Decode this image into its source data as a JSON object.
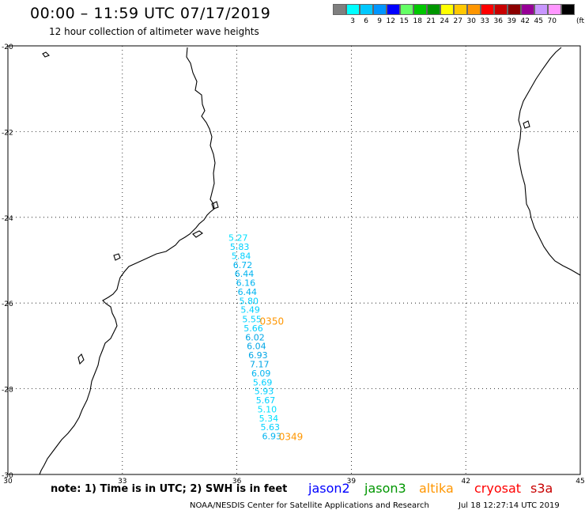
{
  "title": "00:00 – 11:59 UTC 07/17/2019",
  "subtitle": "12 hour collection of altimeter wave heights",
  "legend": {
    "unit": "(ft)",
    "bins": [
      {
        "color": "#7f7f7f",
        "label": ""
      },
      {
        "color": "#00ffff",
        "label": "3"
      },
      {
        "color": "#00c8ff",
        "label": "6"
      },
      {
        "color": "#0096ff",
        "label": "9"
      },
      {
        "color": "#0000ff",
        "label": "12"
      },
      {
        "color": "#64ff64",
        "label": "15"
      },
      {
        "color": "#00c800",
        "label": "18"
      },
      {
        "color": "#009600",
        "label": "21"
      },
      {
        "color": "#ffff00",
        "label": "24"
      },
      {
        "color": "#ffc800",
        "label": "27"
      },
      {
        "color": "#ff9600",
        "label": "30"
      },
      {
        "color": "#ff0000",
        "label": "33"
      },
      {
        "color": "#c80000",
        "label": "36"
      },
      {
        "color": "#8b0000",
        "label": "39"
      },
      {
        "color": "#960096",
        "label": "42"
      },
      {
        "color": "#c896ff",
        "label": "45"
      },
      {
        "color": "#ff96ff",
        "label": "70"
      },
      {
        "color": "#000000",
        "label": ""
      }
    ]
  },
  "map": {
    "lat_range": [
      -30,
      -20
    ],
    "lon_range": [
      30,
      45
    ],
    "lat_ticks": [
      "-20",
      "-22",
      "-24",
      "-26",
      "-28",
      "-30"
    ],
    "lon_ticks": [
      "30",
      "33",
      "36",
      "39",
      "42",
      "45"
    ]
  },
  "observations": [
    {
      "lat": -24.55,
      "lon": 35.78,
      "swh": "5.27",
      "color": "#00e0ff"
    },
    {
      "lat": -24.76,
      "lon": 35.82,
      "swh": "5.83",
      "color": "#00d0ff"
    },
    {
      "lat": -24.97,
      "lon": 35.86,
      "swh": "5.84",
      "color": "#00d0ff"
    },
    {
      "lat": -25.18,
      "lon": 35.9,
      "swh": "6.72",
      "color": "#00b4f0"
    },
    {
      "lat": -25.39,
      "lon": 35.94,
      "swh": "6.44",
      "color": "#00b4f0"
    },
    {
      "lat": -25.6,
      "lon": 35.98,
      "swh": "6.16",
      "color": "#00b4f0"
    },
    {
      "lat": -25.81,
      "lon": 36.02,
      "swh": "6.44",
      "color": "#00b4f0"
    },
    {
      "lat": -26.02,
      "lon": 36.06,
      "swh": "5.80",
      "color": "#00d0ff"
    },
    {
      "lat": -26.23,
      "lon": 36.1,
      "swh": "5.49",
      "color": "#00d0ff"
    },
    {
      "lat": -26.45,
      "lon": 36.14,
      "swh": "5.55",
      "color": "#00d0ff"
    },
    {
      "lat": -26.66,
      "lon": 36.18,
      "swh": "5.66",
      "color": "#00d0ff"
    },
    {
      "lat": -26.87,
      "lon": 36.22,
      "swh": "6.02",
      "color": "#00a6e6"
    },
    {
      "lat": -27.08,
      "lon": 36.26,
      "swh": "6.04",
      "color": "#00a6e6"
    },
    {
      "lat": -27.29,
      "lon": 36.3,
      "swh": "6.93",
      "color": "#00a6e6"
    },
    {
      "lat": -27.5,
      "lon": 36.34,
      "swh": "7.17",
      "color": "#00a6e6"
    },
    {
      "lat": -27.71,
      "lon": 36.38,
      "swh": "6.09",
      "color": "#00b4f0"
    },
    {
      "lat": -27.92,
      "lon": 36.42,
      "swh": "5.69",
      "color": "#00d0ff"
    },
    {
      "lat": -28.13,
      "lon": 36.46,
      "swh": "5.93",
      "color": "#00d0ff"
    },
    {
      "lat": -28.34,
      "lon": 36.5,
      "swh": "5.67",
      "color": "#00d0ff"
    },
    {
      "lat": -28.55,
      "lon": 36.54,
      "swh": "5.10",
      "color": "#00e0ff"
    },
    {
      "lat": -28.76,
      "lon": 36.58,
      "swh": "5.34",
      "color": "#00e0ff"
    },
    {
      "lat": -28.97,
      "lon": 36.62,
      "swh": "5.63",
      "color": "#00d0ff"
    },
    {
      "lat": -29.18,
      "lon": 36.66,
      "swh": "6.93",
      "color": "#00b4f0"
    }
  ],
  "passes": [
    {
      "lat": -26.5,
      "lon": 36.6,
      "label": "0350",
      "color": "#ff9600"
    },
    {
      "lat": -29.2,
      "lon": 37.1,
      "label": "0349",
      "color": "#ff9600"
    }
  ],
  "note": "note: 1) Time is in UTC; 2) SWH is in feet",
  "satellites": [
    {
      "name": "jason2",
      "color": "#0000ff"
    },
    {
      "name": "jason3",
      "color": "#009600"
    },
    {
      "name": "altika",
      "color": "#ff9600"
    },
    {
      "name": "cryosat",
      "color": "#ff0000"
    },
    {
      "name": "s3a",
      "color": "#c80000"
    }
  ],
  "credit": "NOAA/NESDIS Center for Satellite Applications and Research",
  "timestamp": "Jul 18 12:27:14 UTC 2019"
}
